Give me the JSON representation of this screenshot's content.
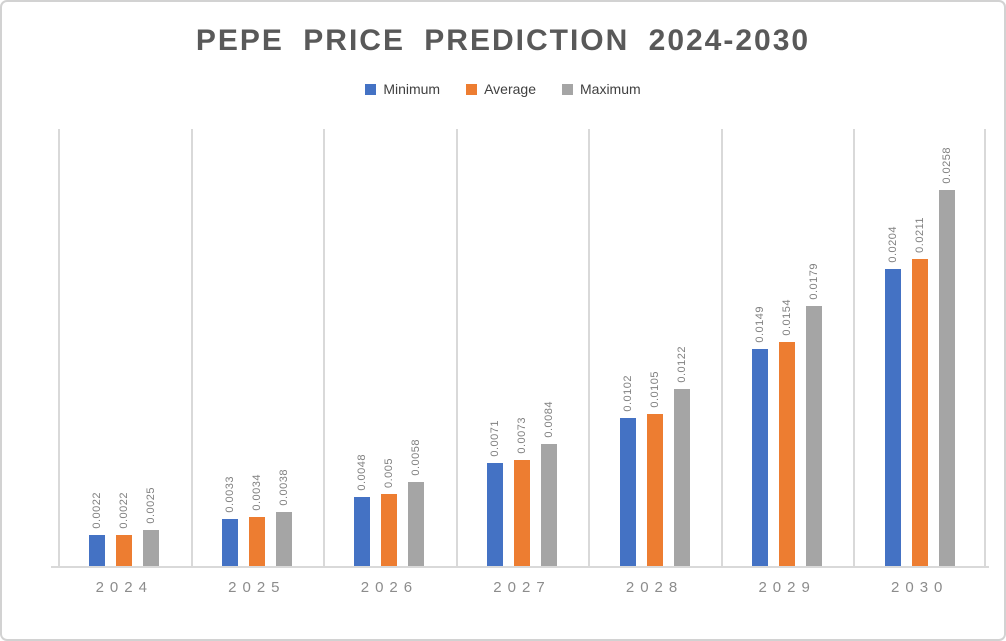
{
  "frame": {
    "background": "#ffffff",
    "border_color": "#d2d2d2"
  },
  "chart_data": {
    "type": "bar",
    "title": "PEPE PRICE PREDICTION 2024-2030",
    "title_color": "#595959",
    "categories": [
      "2024",
      "2025",
      "2026",
      "2027",
      "2028",
      "2029",
      "2030"
    ],
    "series": [
      {
        "name": "Minimum",
        "color": "#4472C4",
        "values": [
          0.0022,
          0.0033,
          0.0048,
          0.0071,
          0.0102,
          0.0149,
          0.0204
        ],
        "labels": [
          "0.0022",
          "0.0033",
          "0.0048",
          "0.0071",
          "0.0102",
          "0.0149",
          "0.0204"
        ]
      },
      {
        "name": "Average",
        "color": "#ED7D31",
        "values": [
          0.0022,
          0.0034,
          0.005,
          0.0073,
          0.0105,
          0.0154,
          0.0211
        ],
        "labels": [
          "0.0022",
          "0.0034",
          "0.005",
          "0.0073",
          "0.0105",
          "0.0154",
          "0.0211"
        ]
      },
      {
        "name": "Maximum",
        "color": "#A5A5A5",
        "values": [
          0.0025,
          0.0038,
          0.0058,
          0.0084,
          0.0122,
          0.0179,
          0.0258
        ],
        "labels": [
          "0.0025",
          "0.0038",
          "0.0058",
          "0.0084",
          "0.0122",
          "0.0179",
          "0.0258"
        ]
      }
    ],
    "xlabel": "",
    "ylabel": "",
    "ylim": [
      0,
      0.03
    ],
    "y_axis_labels_visible": false,
    "grid": "vertical-category-separators",
    "gridline_color": "#D9D9D9",
    "axis_line_color": "#D9D9D9",
    "legend_position": "top",
    "data_labels": {
      "rotation": 90,
      "color": "#808080"
    },
    "category_label_color": "#8C8C8C"
  }
}
